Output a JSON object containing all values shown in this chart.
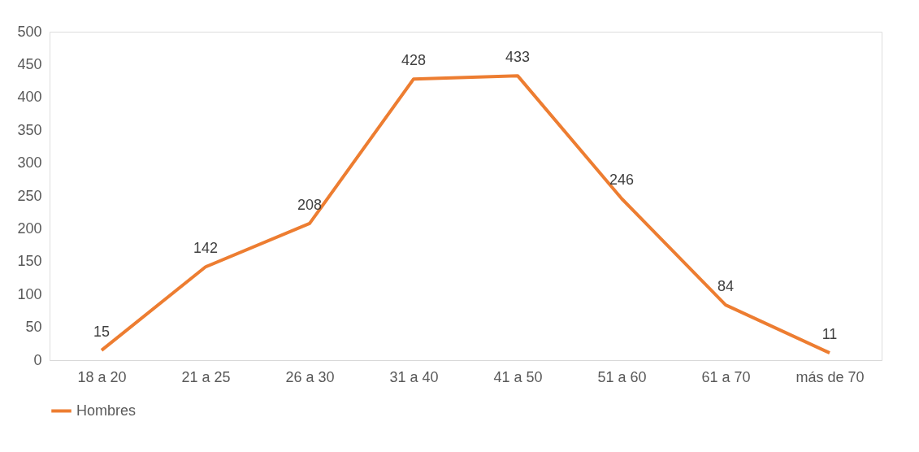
{
  "chart_data": {
    "type": "line",
    "categories": [
      "18 a 20",
      "21 a 25",
      "26 a 30",
      "31 a 40",
      "41 a 50",
      "51 a 60",
      "61 a 70",
      "más de 70"
    ],
    "series": [
      {
        "name": "Hombres",
        "color": "#ed7d31",
        "values": [
          15,
          142,
          208,
          428,
          433,
          246,
          84,
          11
        ]
      }
    ],
    "ylim": [
      0,
      500
    ],
    "yticks": [
      0,
      50,
      100,
      150,
      200,
      250,
      300,
      350,
      400,
      450,
      500
    ],
    "grid": false,
    "legend": "bottom",
    "data_labels": true,
    "marker": "none",
    "line_style": "solid"
  }
}
